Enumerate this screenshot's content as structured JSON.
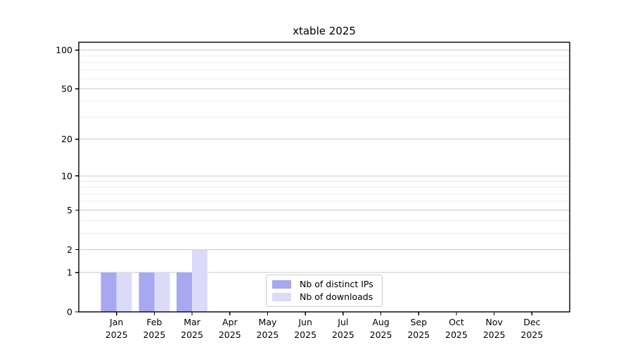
{
  "window": {
    "background": "#ffffff"
  },
  "chart_data": {
    "type": "bar",
    "title": "xtable 2025",
    "categories": [
      "Jan\n2025",
      "Feb\n2025",
      "Mar\n2025",
      "Apr\n2025",
      "May\n2025",
      "Jun\n2025",
      "Jul\n2025",
      "Aug\n2025",
      "Sep\n2025",
      "Oct\n2025",
      "Nov\n2025",
      "Dec\n2025"
    ],
    "series": [
      {
        "name": "Nb of distinct IPs",
        "color": "#a8a8f0",
        "values": [
          1,
          1,
          1,
          0,
          0,
          0,
          0,
          0,
          0,
          0,
          0,
          0
        ]
      },
      {
        "name": "Nb of downloads",
        "color": "#dbdbf9",
        "values": [
          1,
          1,
          2,
          0,
          0,
          0,
          0,
          0,
          0,
          0,
          0,
          0
        ]
      }
    ],
    "xlabel": "",
    "ylabel": "",
    "yscale": "log1p",
    "ylim": [
      0,
      115
    ],
    "yticks_major": [
      0,
      1,
      2,
      5,
      10,
      20,
      50,
      100
    ],
    "yticks_minor": [
      3,
      4,
      6,
      7,
      8,
      9,
      30,
      40,
      60,
      70,
      80,
      90
    ],
    "grid": true,
    "legend_position": "lower center",
    "colors": {
      "axis": "#000000",
      "grid_major": "#c9c9c9",
      "grid_minor": "#ececec",
      "text": "#000000"
    }
  }
}
